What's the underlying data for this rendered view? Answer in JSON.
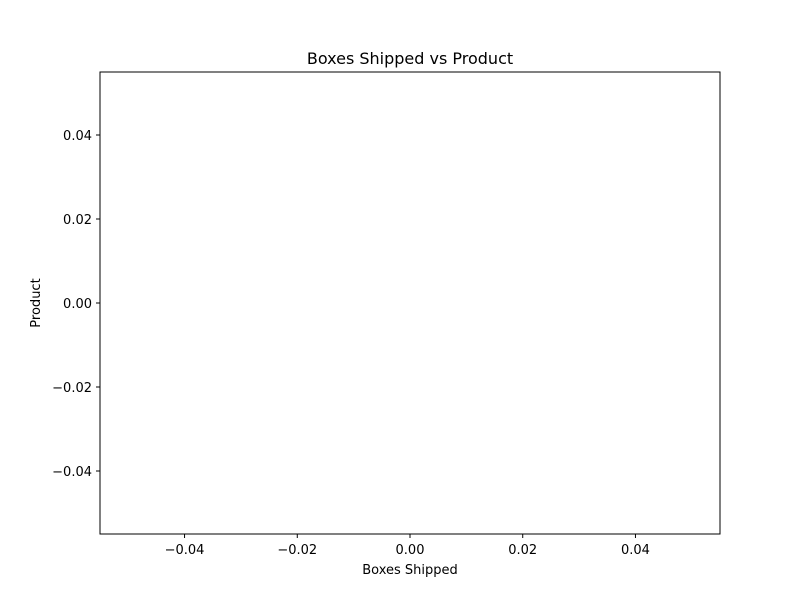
{
  "chart_data": {
    "type": "scatter",
    "title": "Boxes Shipped vs Product",
    "xlabel": "Boxes Shipped",
    "ylabel": "Product",
    "xlim": [
      -0.055,
      0.055
    ],
    "ylim": [
      -0.055,
      0.055
    ],
    "xticks": [
      -0.04,
      -0.02,
      0.0,
      0.02,
      0.04
    ],
    "yticks": [
      -0.04,
      -0.02,
      0.0,
      0.02,
      0.04
    ],
    "xtick_labels": [
      "−0.04",
      "−0.02",
      "0.00",
      "0.02",
      "0.04"
    ],
    "ytick_labels": [
      "−0.04",
      "−0.02",
      "0.00",
      "0.02",
      "0.04"
    ],
    "grid": false,
    "series": [
      {
        "x": [],
        "y": []
      }
    ],
    "colors": {
      "axis": "#000000",
      "background": "#ffffff"
    }
  }
}
